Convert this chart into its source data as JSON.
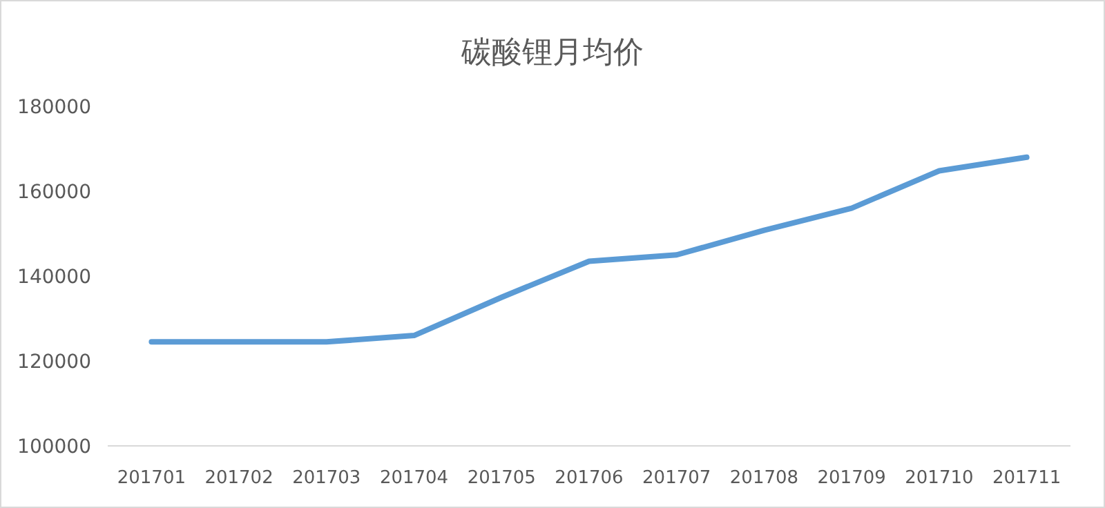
{
  "chart_data": {
    "type": "line",
    "title": "碳酸锂月均价",
    "categories": [
      "201701",
      "201702",
      "201703",
      "201704",
      "201705",
      "201706",
      "201707",
      "201708",
      "201709",
      "201710",
      "201711"
    ],
    "series": [
      {
        "color": "#5b9bd5",
        "values": [
          124500,
          124500,
          124500,
          126000,
          135000,
          143500,
          145000,
          150800,
          156000,
          164800,
          168000
        ]
      }
    ],
    "ylim": [
      100000,
      180000
    ],
    "yticks": [
      100000,
      120000,
      140000,
      160000,
      180000
    ],
    "grid": false,
    "marker": "none",
    "line_style": "solid"
  }
}
